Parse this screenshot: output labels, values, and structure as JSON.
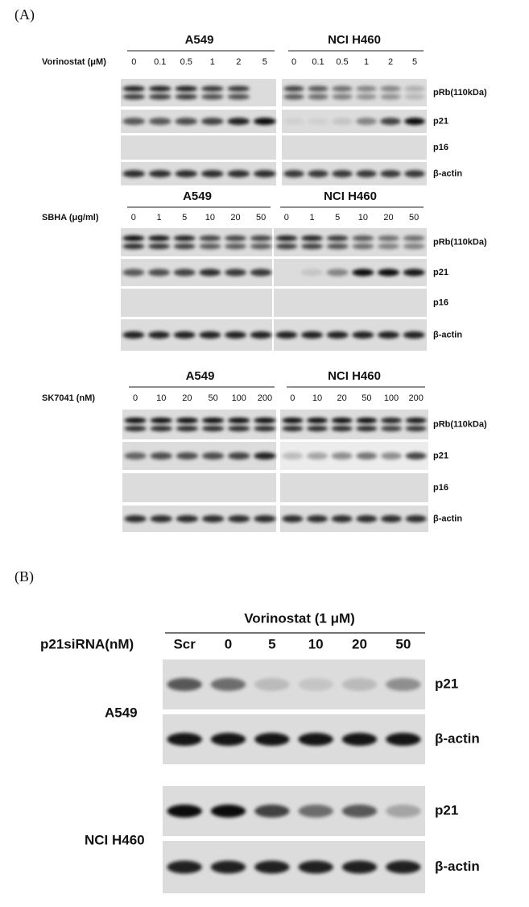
{
  "panel_a": {
    "label": "(A)",
    "blots": [
      {
        "treatment": "Vorinostat (μM)",
        "groups": [
          {
            "cell_line": "A549",
            "doses": [
              "0",
              "0.1",
              "0.5",
              "1",
              "2",
              "5"
            ]
          },
          {
            "cell_line": "NCI H460",
            "doses": [
              "0",
              "0.1",
              "0.5",
              "1",
              "2",
              "5"
            ]
          }
        ],
        "rows": [
          "pRb(110kDa)",
          "p21",
          "p16",
          "β-actin"
        ]
      },
      {
        "treatment": "SBHA (μg/ml)",
        "groups": [
          {
            "cell_line": "A549",
            "doses": [
              "0",
              "1",
              "5",
              "10",
              "20",
              "50"
            ]
          },
          {
            "cell_line": "NCI H460",
            "doses": [
              "0",
              "1",
              "5",
              "10",
              "20",
              "50"
            ]
          }
        ],
        "rows": [
          "pRb(110kDa)",
          "p21",
          "p16",
          "β-actin"
        ]
      },
      {
        "treatment": "SK7041 (nM)",
        "groups": [
          {
            "cell_line": "A549",
            "doses": [
              "0",
              "10",
              "20",
              "50",
              "100",
              "200"
            ]
          },
          {
            "cell_line": "NCI H460",
            "doses": [
              "0",
              "10",
              "20",
              "50",
              "100",
              "200"
            ]
          }
        ],
        "rows": [
          "pRb(110kDa)",
          "p21",
          "p16",
          "β-actin"
        ]
      }
    ]
  },
  "panel_b": {
    "label": "(B)",
    "treatment": "Vorinostat (1 μM)",
    "dose_label": "p21siRNA(nM)",
    "lanes": [
      "Scr",
      "0",
      "5",
      "10",
      "20",
      "50"
    ],
    "cell_lines": [
      {
        "name": "A549",
        "rows": [
          "p21",
          "β-actin"
        ]
      },
      {
        "name": "NCI H460",
        "rows": [
          "p21",
          "β-actin"
        ]
      }
    ]
  }
}
